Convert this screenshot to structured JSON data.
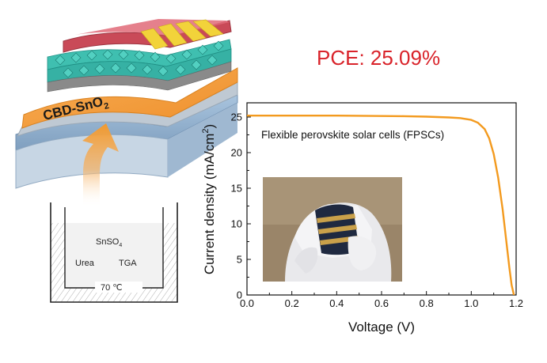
{
  "headline": "PCE: 25.09%",
  "schematic": {
    "film_label_main": "CBD-SnO",
    "film_label_sub": "2",
    "bath_line1_main": "SnSO",
    "bath_line1_sub": "4",
    "bath_reagent_a": "Urea",
    "bath_reagent_b": "TGA",
    "bath_temperature": "70 ℃"
  },
  "colors": {
    "curve": "#f39a1e",
    "headline": "#d9232a",
    "film": "#f4a04a",
    "arrow": "#f5a648",
    "crystal": "#3fbfb0"
  },
  "chart_data": {
    "type": "line",
    "annotation": "Flexible perovskite solar cells (FPSCs)",
    "xlabel": "Voltage (V)",
    "ylabel_main": "Current density (mA/cm",
    "ylabel_sup": "2",
    "ylabel_tail": ")",
    "xlim": [
      0,
      1.2
    ],
    "ylim": [
      0,
      27
    ],
    "xticks": [
      "0.0",
      "0.2",
      "0.4",
      "0.6",
      "0.8",
      "1.0",
      "1.2"
    ],
    "yticks": [
      "0",
      "5",
      "10",
      "15",
      "20",
      "25"
    ],
    "grid": false,
    "series": [
      {
        "x": [
          0.0,
          0.1,
          0.2,
          0.3,
          0.4,
          0.5,
          0.6,
          0.7,
          0.8,
          0.9,
          0.95,
          1.0,
          1.03,
          1.06,
          1.08,
          1.1,
          1.12,
          1.14,
          1.16,
          1.17,
          1.18,
          1.19
        ],
        "values": [
          25.2,
          25.2,
          25.2,
          25.2,
          25.2,
          25.18,
          25.15,
          25.12,
          25.05,
          24.95,
          24.85,
          24.6,
          24.2,
          23.3,
          22.0,
          19.8,
          16.5,
          12.0,
          6.5,
          3.8,
          1.4,
          0.0
        ]
      }
    ]
  }
}
